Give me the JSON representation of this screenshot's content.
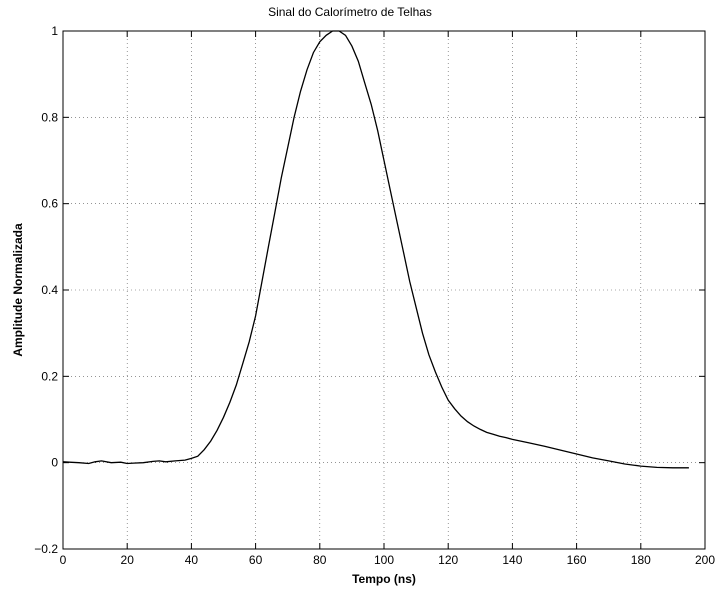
{
  "chart_data": {
    "type": "line",
    "title": "Sinal do Calorímetro de Telhas",
    "xlabel": "Tempo (ns)",
    "ylabel": "Amplitude Normalizada",
    "xlim": [
      0,
      200
    ],
    "ylim": [
      -0.2,
      1
    ],
    "xticks": [
      0,
      20,
      40,
      60,
      80,
      100,
      120,
      140,
      160,
      180,
      200
    ],
    "yticks": [
      -0.2,
      0,
      0.2,
      0.4,
      0.6,
      0.8,
      1
    ],
    "ytick_labels": [
      "−0.2",
      "0",
      "0.2",
      "0.4",
      "0.6",
      "0.8",
      "1"
    ],
    "grid": true,
    "legend": "none",
    "line_color": "#000000",
    "series": [
      {
        "x": [
          0,
          2,
          5,
          8,
          10,
          12,
          15,
          18,
          20,
          22,
          25,
          28,
          30,
          32,
          35,
          38,
          40,
          42,
          44,
          46,
          48,
          50,
          52,
          54,
          56,
          58,
          60,
          62,
          64,
          66,
          68,
          70,
          72,
          74,
          76,
          78,
          80,
          82,
          84,
          86,
          88,
          90,
          92,
          94,
          96,
          98,
          100,
          102,
          104,
          106,
          108,
          110,
          112,
          114,
          116,
          118,
          120,
          122,
          124,
          126,
          128,
          130,
          132,
          134,
          136,
          138,
          140,
          145,
          150,
          155,
          160,
          165,
          170,
          175,
          180,
          185,
          190,
          195
        ],
        "y": [
          0.002,
          0.001,
          0.0,
          -0.002,
          0.002,
          0.004,
          0.0,
          0.001,
          -0.002,
          -0.001,
          0.0,
          0.003,
          0.004,
          0.002,
          0.004,
          0.006,
          0.01,
          0.015,
          0.03,
          0.05,
          0.075,
          0.105,
          0.14,
          0.18,
          0.23,
          0.28,
          0.34,
          0.42,
          0.5,
          0.58,
          0.66,
          0.73,
          0.8,
          0.86,
          0.91,
          0.95,
          0.975,
          0.99,
          1.0,
          1.0,
          0.99,
          0.965,
          0.93,
          0.88,
          0.83,
          0.77,
          0.7,
          0.63,
          0.56,
          0.49,
          0.42,
          0.36,
          0.3,
          0.25,
          0.21,
          0.175,
          0.145,
          0.125,
          0.108,
          0.095,
          0.085,
          0.077,
          0.07,
          0.066,
          0.061,
          0.058,
          0.054,
          0.046,
          0.038,
          0.029,
          0.02,
          0.011,
          0.004,
          -0.003,
          -0.008,
          -0.011,
          -0.012,
          -0.012
        ]
      }
    ]
  }
}
